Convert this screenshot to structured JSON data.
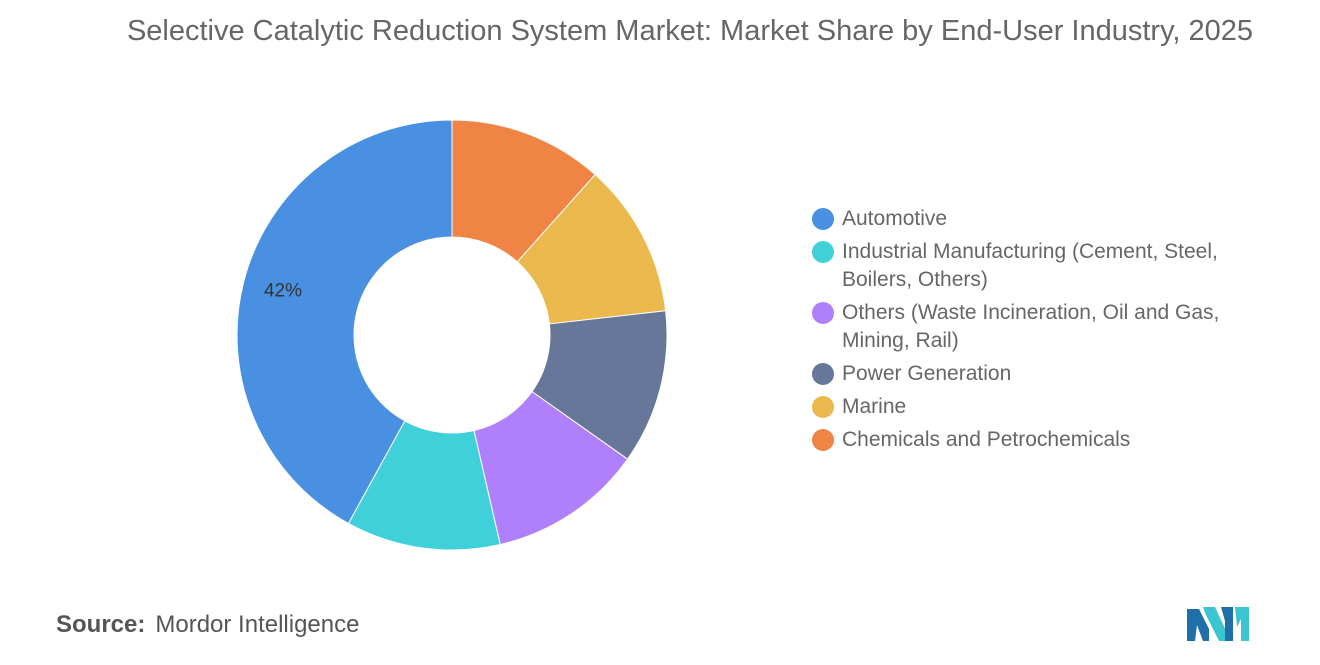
{
  "chart_data": {
    "type": "pie",
    "title": "Selective Catalytic Reduction System Market: Market Share by End-User Industry, 2025",
    "categories": [
      "Automotive",
      "Industrial Manufacturing (Cement, Steel, Boilers, Others)",
      "Others (Waste Incineration, Oil and Gas, Mining, Rail)",
      "Power Generation",
      "Marine",
      "Chemicals and Petrochemicals"
    ],
    "values": [
      42,
      11.6,
      11.6,
      11.6,
      11.6,
      11.6
    ],
    "colors": [
      "#4a90e2",
      "#40d0da",
      "#b07ffc",
      "#667799",
      "#ebb84e",
      "#f08445"
    ],
    "data_labels": [
      "42%",
      "",
      "",
      "",
      "",
      ""
    ],
    "donut": true,
    "legend_position": "right"
  },
  "source": {
    "label": "Source:",
    "text": "Mordor Intelligence"
  },
  "logo": {
    "icon": "mordor-intelligence-logo",
    "colors": [
      "#1f6fa8",
      "#3cc4d0"
    ]
  }
}
